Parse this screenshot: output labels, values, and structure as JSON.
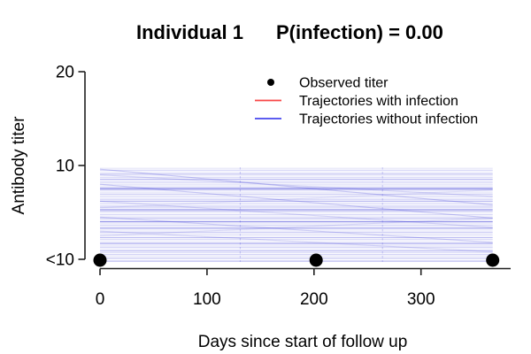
{
  "header": {
    "title_left": "Individual 1",
    "title_right": "P(infection) = 0.00"
  },
  "legend": {
    "items": [
      {
        "id": "observed",
        "marker": "point",
        "color": "#000000",
        "label": "Observed titer"
      },
      {
        "id": "with-infection",
        "marker": "line",
        "color": "#f84646",
        "label": "Trajectories with infection"
      },
      {
        "id": "without-infection",
        "marker": "line",
        "color": "#4646ee",
        "label": "Trajectories without infection"
      }
    ]
  },
  "axes": {
    "x": {
      "label": "Days since start of follow up",
      "ticks": [
        0,
        100,
        200,
        300
      ]
    },
    "y": {
      "label": "Antibody titer",
      "tick_labels": [
        "<10",
        "10",
        "20"
      ]
    }
  },
  "chart_data": {
    "type": "line",
    "title": "Individual 1    P(infection) = 0.00",
    "individual": 1,
    "p_infection_label": "0.00",
    "xlabel": "Days since start of follow up",
    "ylabel": "Antibody titer",
    "x_ticks": [
      0,
      100,
      200,
      300
    ],
    "y_tick_labels": [
      "<10",
      "10",
      "20"
    ],
    "y_value_scale": "titer units: 0 = <10, 1 = 10, 2 = 20",
    "follow_up_days": [
      0,
      367
    ],
    "observed_points": [
      {
        "day": 0,
        "titer": "<10",
        "value": 0
      },
      {
        "day": 202,
        "titer": "<10",
        "value": 0
      },
      {
        "day": 367,
        "titer": "<10",
        "value": 0
      }
    ],
    "jump_marker_days": [
      131,
      264
    ],
    "trajectory_color_base": "#1f1fd0",
    "trajectories_with_infection": [],
    "trajectories_without_infection": [
      [
        0.97,
        0.97,
        0.12
      ],
      [
        0.95,
        0.95,
        0.2
      ],
      [
        0.93,
        0.93,
        0.1
      ],
      [
        0.91,
        0.91,
        0.26
      ],
      [
        0.895,
        0.895,
        0.12
      ],
      [
        0.875,
        0.875,
        0.18
      ],
      [
        0.855,
        0.855,
        0.3
      ],
      [
        0.84,
        0.84,
        0.12
      ],
      [
        0.82,
        0.82,
        0.22
      ],
      [
        0.8,
        0.8,
        0.14
      ],
      [
        0.785,
        0.785,
        0.1
      ],
      [
        0.765,
        0.765,
        0.32
      ],
      [
        0.75,
        0.75,
        0.5
      ],
      [
        0.735,
        0.735,
        0.18
      ],
      [
        0.715,
        0.715,
        0.12
      ],
      [
        0.695,
        0.695,
        0.25
      ],
      [
        0.675,
        0.675,
        0.15
      ],
      [
        0.66,
        0.66,
        0.1
      ],
      [
        0.64,
        0.64,
        0.22
      ],
      [
        0.62,
        0.62,
        0.35
      ],
      [
        0.6,
        0.6,
        0.14
      ],
      [
        0.585,
        0.585,
        0.1
      ],
      [
        0.565,
        0.565,
        0.24
      ],
      [
        0.55,
        0.55,
        0.16
      ],
      [
        0.53,
        0.53,
        0.45
      ],
      [
        0.515,
        0.515,
        0.3
      ],
      [
        0.495,
        0.495,
        0.12
      ],
      [
        0.475,
        0.475,
        0.2
      ],
      [
        0.455,
        0.455,
        0.1
      ],
      [
        0.44,
        0.44,
        0.28
      ],
      [
        0.42,
        0.42,
        0.16
      ],
      [
        0.4,
        0.4,
        0.5
      ],
      [
        0.385,
        0.385,
        0.12
      ],
      [
        0.365,
        0.365,
        0.22
      ],
      [
        0.345,
        0.345,
        0.14
      ],
      [
        0.33,
        0.33,
        0.38
      ],
      [
        0.31,
        0.31,
        0.1
      ],
      [
        0.29,
        0.29,
        0.26
      ],
      [
        0.27,
        0.27,
        0.16
      ],
      [
        0.25,
        0.25,
        0.12
      ],
      [
        0.23,
        0.23,
        0.3
      ],
      [
        0.21,
        0.21,
        0.18
      ],
      [
        0.19,
        0.19,
        0.1
      ],
      [
        0.17,
        0.17,
        0.4
      ],
      [
        0.15,
        0.15,
        0.14
      ],
      [
        0.13,
        0.13,
        0.24
      ],
      [
        0.11,
        0.11,
        0.12
      ],
      [
        0.09,
        0.09,
        0.32
      ],
      [
        0.07,
        0.07,
        0.16
      ],
      [
        0.05,
        0.05,
        0.22
      ],
      [
        0.03,
        0.03,
        0.12
      ],
      [
        0.01,
        0.01,
        0.28
      ],
      [
        -0.02,
        -0.02,
        0.35
      ],
      [
        0.96,
        0.58,
        0.22
      ],
      [
        0.9,
        0.67,
        0.15
      ],
      [
        0.8,
        0.44,
        0.2
      ],
      [
        0.62,
        0.34,
        0.15
      ],
      [
        0.45,
        0.18,
        0.18
      ],
      [
        0.3,
        0.08,
        0.15
      ],
      [
        0.25,
        0.44,
        0.12
      ],
      [
        0.55,
        0.74,
        0.1
      ]
    ]
  },
  "colors": {
    "axis": "#1f1f1f",
    "background": "#ffffff",
    "observed_point": "#000000"
  }
}
